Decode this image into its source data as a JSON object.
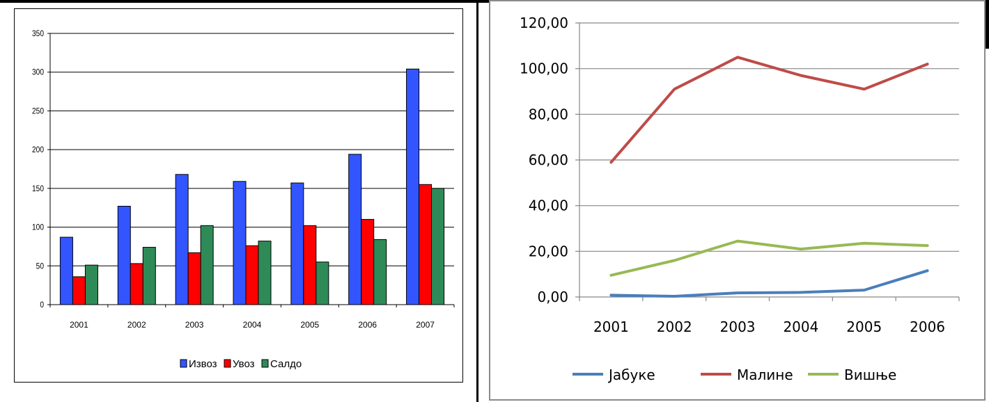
{
  "chart_data": [
    {
      "type": "bar",
      "categories": [
        "2001",
        "2002",
        "2003",
        "2004",
        "2005",
        "2006",
        "2007"
      ],
      "series": [
        {
          "name": "Извоз",
          "color": "#3355FF",
          "values": [
            87,
            127,
            168,
            159,
            157,
            194,
            304
          ]
        },
        {
          "name": "Увоз",
          "color": "#FF0000",
          "values": [
            36,
            53,
            67,
            76,
            102,
            110,
            155
          ]
        },
        {
          "name": "Салдо",
          "color": "#2E8B57",
          "values": [
            51,
            74,
            102,
            82,
            55,
            84,
            150
          ]
        }
      ],
      "ylim": [
        0,
        350
      ],
      "yticks": [
        "0",
        "50",
        "100",
        "150",
        "200",
        "250",
        "300",
        "350"
      ],
      "grid": true,
      "legend": "bottom"
    },
    {
      "type": "line",
      "categories": [
        "2001",
        "2002",
        "2003",
        "2004",
        "2005",
        "2006"
      ],
      "series": [
        {
          "name": "Јабуке",
          "color": "#4A7EBB",
          "values": [
            0.8,
            0.3,
            1.8,
            2.0,
            3.0,
            11.5
          ]
        },
        {
          "name": "Малине",
          "color": "#BE4B48",
          "values": [
            59.0,
            91.0,
            105.0,
            97.0,
            91.0,
            102.0
          ]
        },
        {
          "name": "Вишње",
          "color": "#98B954",
          "values": [
            9.5,
            16.0,
            24.5,
            21.0,
            23.5,
            22.5
          ]
        }
      ],
      "ylim": [
        0,
        120
      ],
      "yticks": [
        "0,00",
        "20,00",
        "40,00",
        "60,00",
        "80,00",
        "100,00",
        "120,00"
      ],
      "grid": true,
      "legend": "bottom"
    }
  ]
}
